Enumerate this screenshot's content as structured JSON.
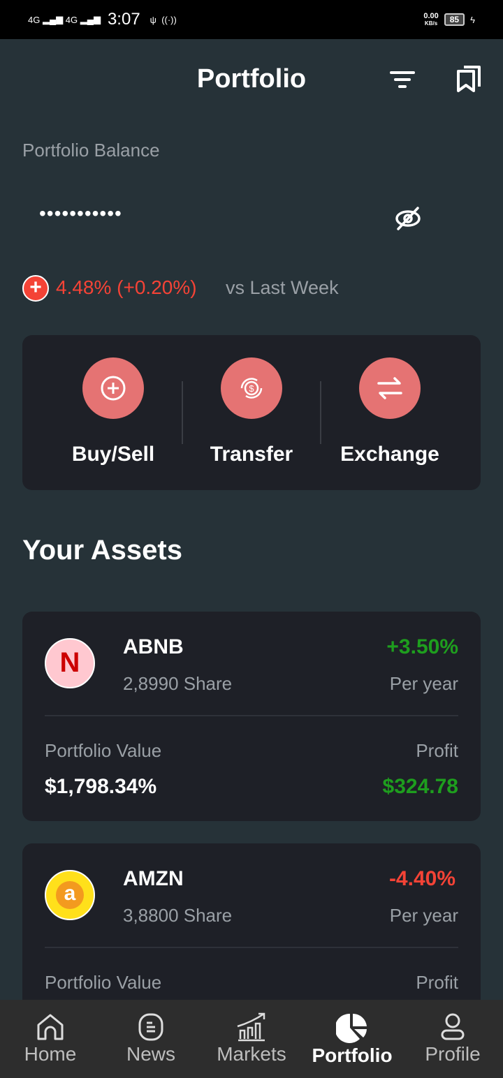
{
  "status": {
    "network1": "4G",
    "network2": "4G",
    "time": "3:07",
    "speed": "0.00",
    "speed_unit": "KB/s",
    "battery": "85"
  },
  "header": {
    "title": "Portfolio"
  },
  "balance": {
    "label": "Portfolio Balance",
    "value": "•••••••••••",
    "change": "4.48% (+0.20%)",
    "compare": "vs Last Week"
  },
  "actions": [
    {
      "label": "Buy/Sell"
    },
    {
      "label": "Transfer"
    },
    {
      "label": "Exchange"
    }
  ],
  "assets_title": "Your Assets",
  "assets": [
    {
      "ticker": "ABNB",
      "shares": "2,8990 Share",
      "change": "+3.50%",
      "period": "Per year",
      "value_label": "Portfolio Value",
      "value": "$1,798.34%",
      "profit_label": "Profit",
      "profit": "$324.78",
      "change_color": "#1e9e1e",
      "logo_letter": "N"
    },
    {
      "ticker": "AMZN",
      "shares": "3,8800 Share",
      "change": "-4.40%",
      "period": "Per year",
      "value_label": "Portfolio Value",
      "profit_label": "Profit",
      "change_color": "#f44336",
      "logo_letter": "a"
    }
  ],
  "nav": [
    {
      "label": "Home"
    },
    {
      "label": "News"
    },
    {
      "label": "Markets"
    },
    {
      "label": "Portfolio",
      "active": true
    },
    {
      "label": "Profile"
    }
  ],
  "colors": {
    "background": "#263238",
    "card": "#1e2027",
    "accent": "#e57373",
    "negative": "#f44336",
    "positive": "#1e9e1e"
  }
}
